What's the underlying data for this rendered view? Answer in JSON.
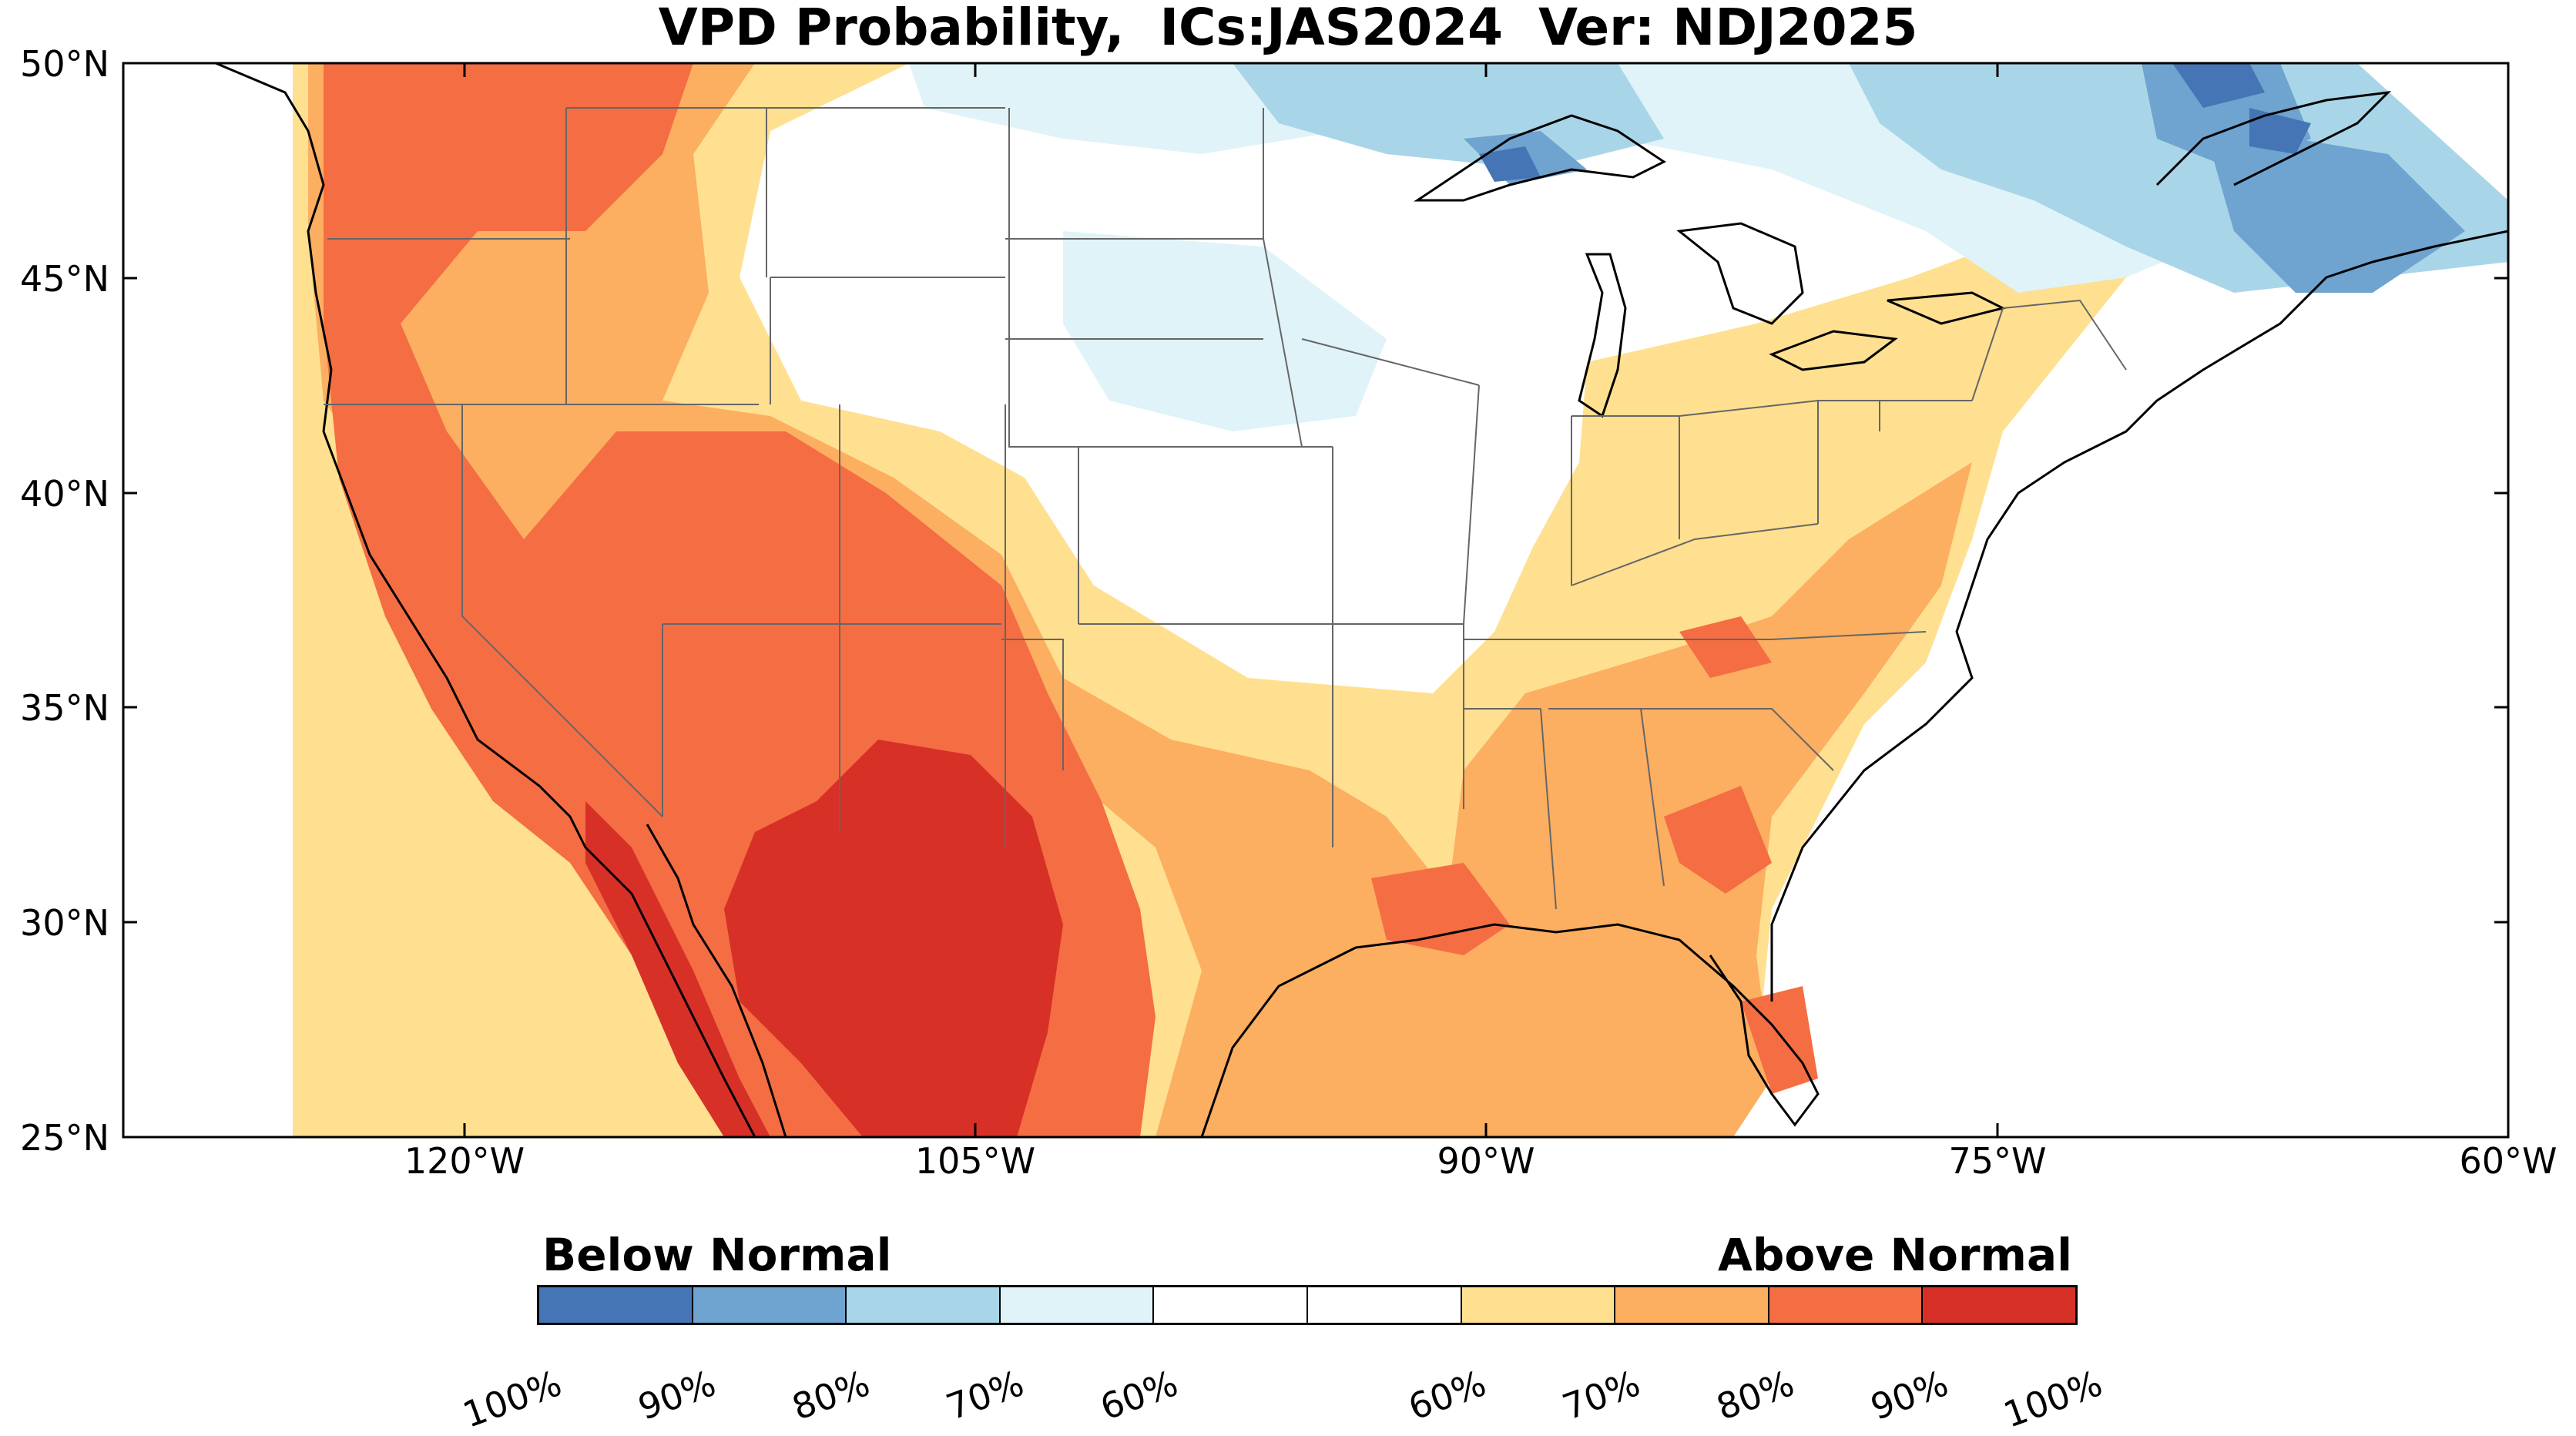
{
  "title": "VPD Probability,  ICs:JAS2024  Ver: NDJ2025",
  "map": {
    "lon_range": [
      -127,
      -60
    ],
    "lat_range": [
      25,
      50
    ],
    "lat_ticks": [
      {
        "value": 50,
        "label": "50°N"
      },
      {
        "value": 45,
        "label": "45°N"
      },
      {
        "value": 40,
        "label": "40°N"
      },
      {
        "value": 35,
        "label": "35°N"
      },
      {
        "value": 30,
        "label": "30°N"
      },
      {
        "value": 25,
        "label": "25°N"
      }
    ],
    "lon_ticks": [
      {
        "value": -120,
        "label": "120°W"
      },
      {
        "value": -105,
        "label": "105°W"
      },
      {
        "value": -90,
        "label": "90°W"
      },
      {
        "value": -75,
        "label": "75°W"
      },
      {
        "value": -60,
        "label": "60°W"
      }
    ]
  },
  "legend": {
    "below_label": "Below Normal",
    "above_label": "Above Normal",
    "colors": [
      "#4575b4",
      "#6fa3d0",
      "#a9d5e8",
      "#e0f3f8",
      "#ffffff",
      "#ffffff",
      "#fee090",
      "#fcae61",
      "#f46d43",
      "#d73027"
    ],
    "tick_labels": [
      "100%",
      "90%",
      "80%",
      "70%",
      "60%",
      "60%",
      "70%",
      "80%",
      "90%",
      "100%"
    ]
  }
}
